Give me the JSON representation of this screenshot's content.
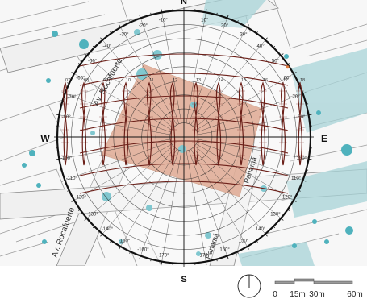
{
  "compass": {
    "north": "N",
    "south": "S",
    "east": "E",
    "west": "W"
  },
  "streets": [
    {
      "id": "rocafuerte-top",
      "label": "Av. Rocafuerte"
    },
    {
      "id": "rocafuerte-bottom",
      "label": "Av. Rocafuerte"
    },
    {
      "id": "panama-right",
      "label": "Panamá"
    },
    {
      "id": "panama-bottom",
      "label": "Panamá"
    }
  ],
  "azimuth_labels": [
    {
      "deg": 10,
      "text": "10°"
    },
    {
      "deg": 20,
      "text": "20°"
    },
    {
      "deg": 30,
      "text": "30°"
    },
    {
      "deg": 40,
      "text": "40°"
    },
    {
      "deg": 50,
      "text": "50°"
    },
    {
      "deg": 60,
      "text": "60°"
    },
    {
      "deg": 70,
      "text": "70°"
    },
    {
      "deg": 80,
      "text": "80°"
    },
    {
      "deg": 100,
      "text": "100°"
    },
    {
      "deg": 110,
      "text": "110°"
    },
    {
      "deg": 120,
      "text": "120°"
    },
    {
      "deg": 130,
      "text": "130°"
    },
    {
      "deg": 140,
      "text": "140°"
    },
    {
      "deg": 150,
      "text": "150°"
    },
    {
      "deg": 160,
      "text": "160°"
    },
    {
      "deg": 170,
      "text": "170°"
    },
    {
      "deg": -10,
      "text": "-10°"
    },
    {
      "deg": -20,
      "text": "-20°"
    },
    {
      "deg": -30,
      "text": "-30°"
    },
    {
      "deg": -40,
      "text": "-40°"
    },
    {
      "deg": -50,
      "text": "-50°"
    },
    {
      "deg": -60,
      "text": "-60°"
    },
    {
      "deg": -70,
      "text": "-70°"
    },
    {
      "deg": -80,
      "text": "-80°"
    },
    {
      "deg": -100,
      "text": "-100°"
    },
    {
      "deg": -110,
      "text": "-110°"
    },
    {
      "deg": -120,
      "text": "-120°"
    },
    {
      "deg": -130,
      "text": "-130°"
    },
    {
      "deg": -140,
      "text": "-140°"
    },
    {
      "deg": -150,
      "text": "-150°"
    },
    {
      "deg": -160,
      "text": "-160°"
    },
    {
      "deg": -170,
      "text": "-170°"
    }
  ],
  "hour_labels": [
    "07",
    "08",
    "09",
    "10",
    "11",
    "12",
    "13",
    "14",
    "15",
    "16",
    "17",
    "18"
  ],
  "scale_bar": {
    "ticks": [
      "0",
      "15m",
      "30m",
      "60m"
    ]
  },
  "north_arrow": "north-arrow",
  "colors": {
    "background": "#ffffff",
    "street_fill": "#f2f2f2",
    "parcel_line": "#9a9a9a",
    "building": "#d48d6e",
    "water_block": "#a8d4d8",
    "tree": "#4fb2bd",
    "sun_path": "#6b1f18",
    "grid": "#222222"
  }
}
